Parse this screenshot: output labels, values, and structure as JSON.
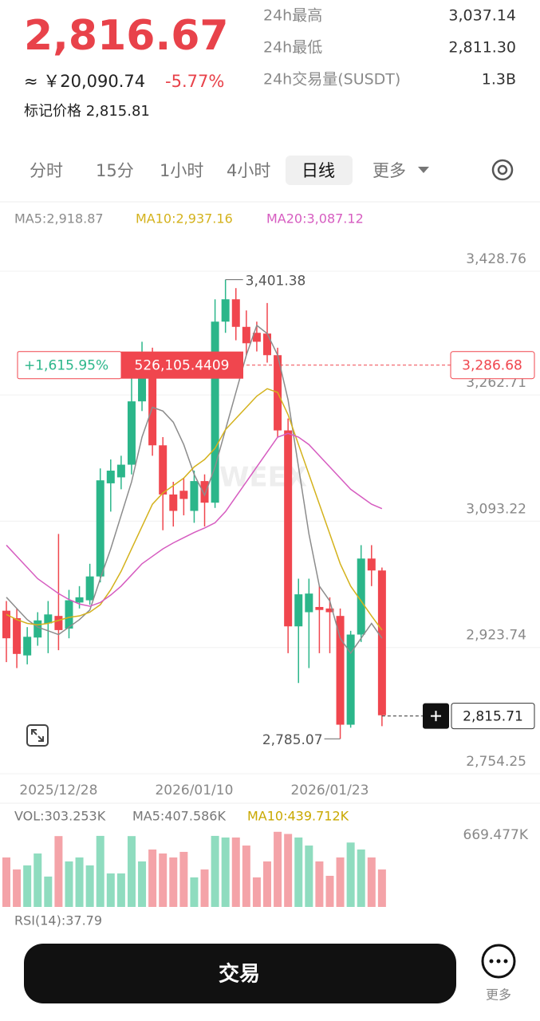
{
  "header": {
    "price": "2,816.67",
    "cny": "≈ ￥20,090.74",
    "change": "-5.77%",
    "mark_price": "标记价格 2,815.81"
  },
  "stats": [
    {
      "label": "24h最高",
      "value": "3,037.14"
    },
    {
      "label": "24h最低",
      "value": "2,811.30"
    },
    {
      "label": "24h交易量(SUSDT)",
      "value": "1.3B"
    }
  ],
  "tabs": [
    "分时",
    "15分",
    "1小时",
    "4小时",
    "日线",
    "更多"
  ],
  "active_tab": 4,
  "chart_data": {
    "type": "candlestick",
    "watermark": "WEEX",
    "categories": [
      null,
      null,
      null,
      null,
      null,
      "2025/12/28",
      null,
      null,
      null,
      null,
      null,
      null,
      null,
      null,
      null,
      null,
      null,
      null,
      "2026/01/10",
      null,
      null,
      null,
      null,
      null,
      null,
      null,
      null,
      null,
      null,
      null,
      null,
      "2026/01/23",
      null,
      null,
      null,
      null,
      null
    ],
    "open": [
      2957,
      2947,
      2897,
      2921,
      2940,
      2950,
      2933,
      2968,
      2971,
      3003,
      3128,
      3136,
      3153,
      3238,
      3300,
      3179,
      3113,
      3118,
      3091,
      3131,
      3102,
      3345,
      3375,
      3338,
      3330,
      3329,
      3300,
      3199,
      2936,
      2955,
      2962,
      2960,
      2950,
      2804,
      2925,
      3027,
      3011
    ],
    "high": [
      2970,
      2960,
      2935,
      2955,
      2970,
      3060,
      2985,
      2990,
      3020,
      3148,
      3160,
      3165,
      3290,
      3318,
      3310,
      3190,
      3130,
      3135,
      3145,
      3140,
      3375,
      3401.38,
      3390,
      3360,
      3345,
      3370,
      3310,
      3215,
      3000,
      3000,
      2990,
      2975,
      2960,
      2930,
      3045,
      3045,
      3015
    ],
    "low": [
      2888,
      2880,
      2885,
      2910,
      2900,
      2904,
      2920,
      2960,
      2965,
      2995,
      3090,
      3120,
      3140,
      3225,
      3165,
      3065,
      3070,
      3085,
      3075,
      3070,
      3095,
      3330,
      3320,
      3300,
      3305,
      3290,
      3190,
      2900,
      2860,
      2880,
      2900,
      2900,
      2785.07,
      2800,
      2915,
      2990,
      2802
    ],
    "close": [
      2920,
      2899,
      2922,
      2944,
      2952,
      2931,
      2971,
      2975,
      3003,
      3132,
      3145,
      3153,
      3238,
      3300,
      3179,
      3113,
      3091,
      3107,
      3131,
      3102,
      3345,
      3375,
      3338,
      3316,
      3318,
      3300,
      3199,
      2936,
      2979,
      2980,
      2958,
      2955,
      2804,
      2925,
      3027,
      3011,
      2816.67
    ],
    "series": [
      {
        "name": "MA5:2,918.87",
        "color": "#8c8c8c",
        "values": [
          2975,
          2960,
          2945,
          2935,
          2930,
          2925,
          2935,
          2945,
          2958,
          3000,
          3040,
          3085,
          3130,
          3190,
          3230,
          3225,
          3210,
          3180,
          3140,
          3112,
          3150,
          3200,
          3250,
          3300,
          3340,
          3329,
          3300,
          3240,
          3150,
          3060,
          2990,
          2970,
          2920,
          2900,
          2920,
          2940,
          2920
        ]
      },
      {
        "name": "MA10:2,937.16",
        "color": "#d4b21c",
        "values": [
          2952,
          2945,
          2940,
          2938,
          2940,
          2944,
          2948,
          2950,
          2955,
          2965,
          2985,
          3010,
          3040,
          3070,
          3100,
          3115,
          3125,
          3135,
          3150,
          3160,
          3175,
          3200,
          3215,
          3230,
          3245,
          3255,
          3250,
          3220,
          3180,
          3140,
          3100,
          3060,
          3020,
          2990,
          2970,
          2950,
          2931
        ]
      },
      {
        "name": "MA20:3,087.12",
        "color": "#d65cc0",
        "values": [
          3045,
          3030,
          3015,
          3000,
          2990,
          2980,
          2972,
          2966,
          2963,
          2968,
          2978,
          2990,
          3005,
          3020,
          3030,
          3040,
          3048,
          3055,
          3062,
          3068,
          3075,
          3090,
          3110,
          3130,
          3150,
          3170,
          3190,
          3195,
          3190,
          3180,
          3165,
          3150,
          3135,
          3120,
          3110,
          3100,
          3094
        ]
      }
    ],
    "ylim": [
      2738.2,
      3503.7
    ],
    "yticks": [
      {
        "value": 3428.76,
        "label": "3,428.76"
      },
      {
        "value": 3262.71,
        "label": "3,262.71"
      },
      {
        "value": 3093.22,
        "label": "3,093.22"
      },
      {
        "value": 2923.74,
        "label": "2,923.74"
      },
      {
        "value": 2754.25,
        "label": "2,754.25"
      }
    ],
    "grid": true,
    "high_marker": {
      "value": 3401.38,
      "label": "3,401.38"
    },
    "low_marker": {
      "value": 2785.07,
      "label": "2,785.07"
    },
    "ref_line": {
      "value": 3286.68,
      "label": "3,286.68",
      "change": "+1,615.95%",
      "amount": "526,105.4409"
    },
    "last_price": {
      "value": 2815.71,
      "label": "2,815.71"
    },
    "volume": {
      "header": [
        "VOL:303.253K",
        "MA5:407.586K",
        "MA10:439.712K"
      ],
      "values": [
        461,
        349,
        387,
        498,
        283,
        660,
        424,
        461,
        387,
        662,
        312,
        312,
        660,
        424,
        535,
        498,
        461,
        513,
        275,
        349,
        662,
        647,
        647,
        572,
        275,
        424,
        700,
        680,
        647,
        572,
        424,
        290,
        461,
        600,
        535,
        461,
        349
      ],
      "ylim": [
        0,
        758
      ],
      "yticks": [
        {
          "value": 669.477,
          "label": "669.477K"
        }
      ]
    },
    "rsi_label": "RSI(14):37.79"
  },
  "footer": {
    "trade": "交易",
    "more": "更多"
  }
}
